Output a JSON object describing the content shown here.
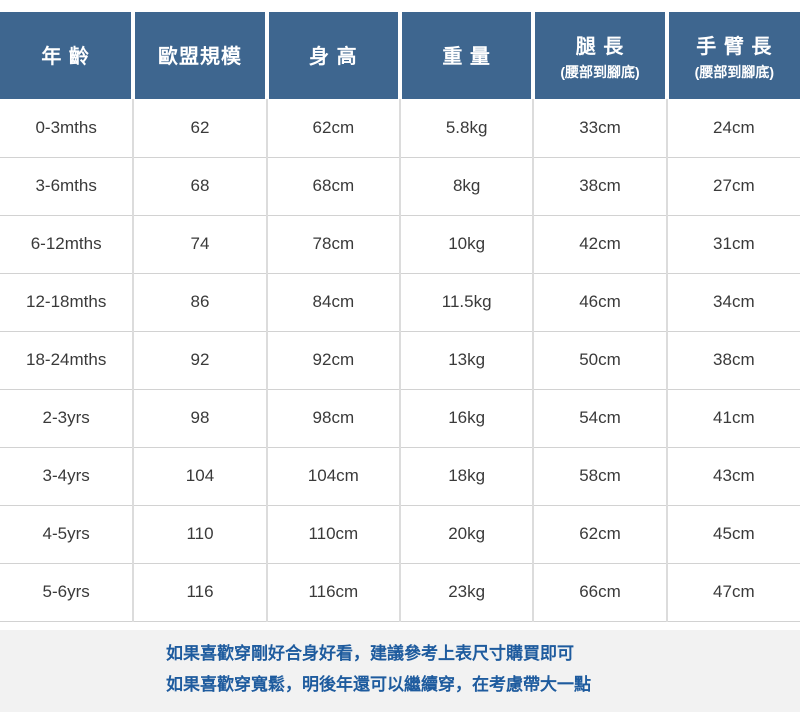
{
  "chart_data": {
    "type": "table",
    "columns": [
      "年齡",
      "歐盟規模",
      "身高",
      "重量",
      "腿長(腰部到腳底)",
      "手臂長(腰部到腳底)"
    ],
    "rows": [
      [
        "0-3mths",
        "62",
        "62cm",
        "5.8kg",
        "33cm",
        "24cm"
      ],
      [
        "3-6mths",
        "68",
        "68cm",
        "8kg",
        "38cm",
        "27cm"
      ],
      [
        "6-12mths",
        "74",
        "78cm",
        "10kg",
        "42cm",
        "31cm"
      ],
      [
        "12-18mths",
        "86",
        "84cm",
        "11.5kg",
        "46cm",
        "34cm"
      ],
      [
        "18-24mths",
        "92",
        "92cm",
        "13kg",
        "50cm",
        "38cm"
      ],
      [
        "2-3yrs",
        "98",
        "98cm",
        "16kg",
        "54cm",
        "41cm"
      ],
      [
        "3-4yrs",
        "104",
        "104cm",
        "18kg",
        "58cm",
        "43cm"
      ],
      [
        "4-5yrs",
        "110",
        "110cm",
        "20kg",
        "62cm",
        "45cm"
      ],
      [
        "5-6yrs",
        "116",
        "116cm",
        "23kg",
        "66cm",
        "47cm"
      ]
    ]
  },
  "header": {
    "cells": [
      {
        "label": "年 齡"
      },
      {
        "label": "歐盟規模"
      },
      {
        "label": "身 高"
      },
      {
        "label": "重 量"
      },
      {
        "label": "腿 長",
        "sub": "(腰部到腳底)"
      },
      {
        "label": "手 臂 長",
        "sub": "(腰部到腳底)"
      }
    ]
  },
  "footer": {
    "line1": "如果喜歡穿剛好合身好看，建議參考上表尺寸購買即可",
    "line2": "如果喜歡穿寬鬆，明後年還可以繼續穿，在考慮帶大一點"
  },
  "colors": {
    "header_bg": "#3e668f",
    "header_text": "#ffffff",
    "grid_line": "#d2d2d2",
    "body_text": "#3a3a3a",
    "note_bg": "#f2f2f2",
    "note_text": "#1e5b9e"
  }
}
